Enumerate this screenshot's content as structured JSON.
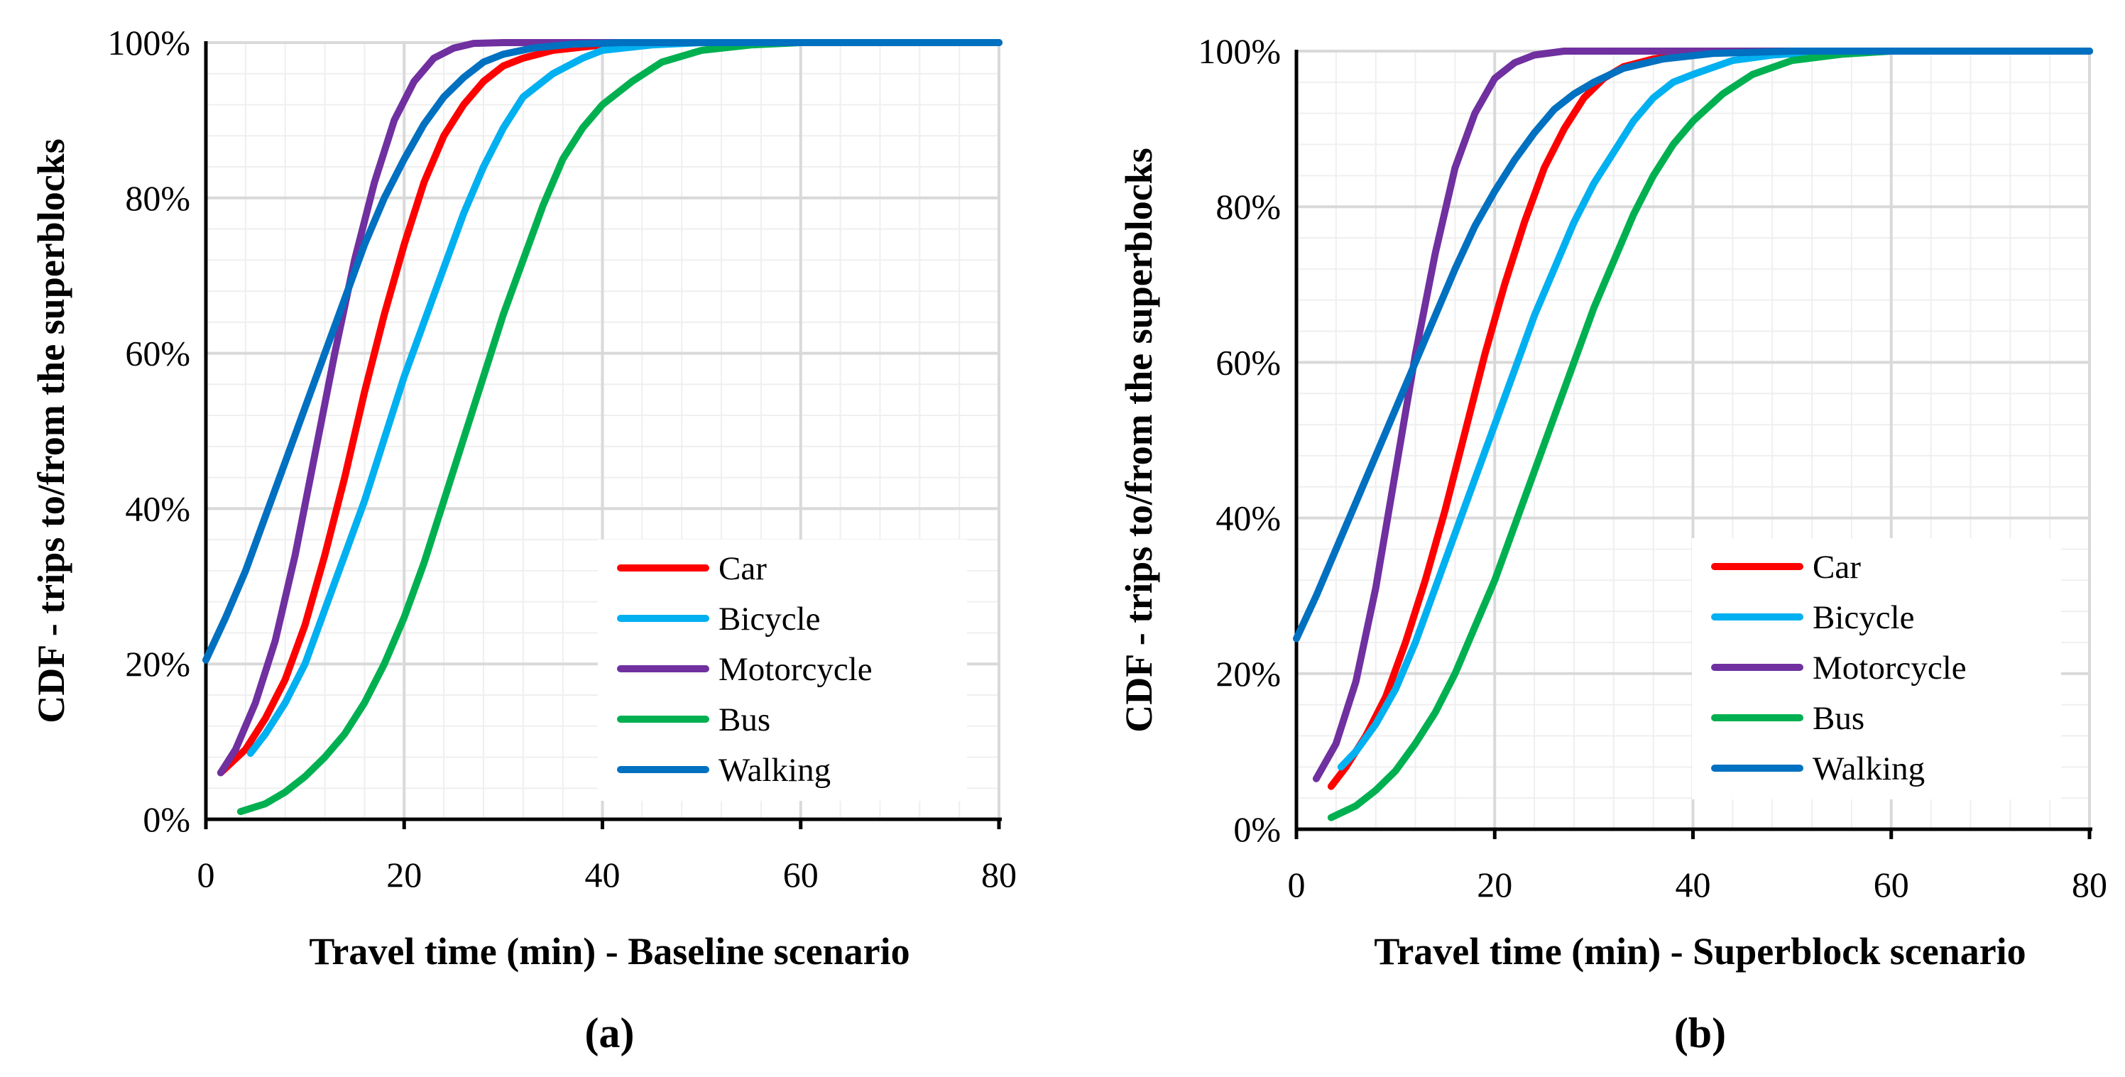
{
  "chart_data": [
    {
      "type": "line",
      "panel_label": "(a)",
      "xlabel": "Travel time (min) - Baseline scenario",
      "ylabel": "CDF - trips to/from the superblocks",
      "xlim": [
        0,
        80
      ],
      "ylim": [
        0,
        100
      ],
      "x_ticks": [
        0,
        20,
        40,
        60,
        80
      ],
      "x_tick_labels": [
        "0",
        "20",
        "40",
        "60",
        "80"
      ],
      "y_ticks": [
        0,
        20,
        40,
        60,
        80,
        100
      ],
      "y_tick_labels": [
        "0%",
        "20%",
        "40%",
        "60%",
        "80%",
        "100%"
      ],
      "grid": true,
      "legend_position": "bottom-right",
      "series": [
        {
          "name": "Car",
          "color": "#ff0000",
          "points": [
            [
              1.5,
              6
            ],
            [
              4,
              9
            ],
            [
              6,
              13
            ],
            [
              8,
              18
            ],
            [
              10,
              25
            ],
            [
              12,
              34
            ],
            [
              14,
              44
            ],
            [
              16,
              55
            ],
            [
              18,
              65
            ],
            [
              20,
              74
            ],
            [
              22,
              82
            ],
            [
              24,
              88
            ],
            [
              26,
              92
            ],
            [
              28,
              95
            ],
            [
              30,
              97
            ],
            [
              32,
              98
            ],
            [
              35,
              99
            ],
            [
              40,
              99.7
            ],
            [
              45,
              100
            ],
            [
              55,
              100
            ],
            [
              60,
              100
            ],
            [
              80,
              100
            ]
          ]
        },
        {
          "name": "Bicycle",
          "color": "#00b0f0",
          "points": [
            [
              4.5,
              8.5
            ],
            [
              6,
              11
            ],
            [
              8,
              15
            ],
            [
              10,
              20
            ],
            [
              12,
              27
            ],
            [
              14,
              34
            ],
            [
              16,
              41
            ],
            [
              18,
              49
            ],
            [
              20,
              57
            ],
            [
              22,
              64
            ],
            [
              24,
              71
            ],
            [
              26,
              78
            ],
            [
              28,
              84
            ],
            [
              30,
              89
            ],
            [
              32,
              93
            ],
            [
              35,
              96
            ],
            [
              38,
              98
            ],
            [
              40,
              99
            ],
            [
              45,
              99.7
            ],
            [
              50,
              100
            ],
            [
              60,
              100
            ],
            [
              80,
              100
            ]
          ]
        },
        {
          "name": "Motorcycle",
          "color": "#7030a0",
          "points": [
            [
              1.5,
              6
            ],
            [
              3,
              9
            ],
            [
              5,
              15
            ],
            [
              7,
              23
            ],
            [
              9,
              34
            ],
            [
              11,
              47
            ],
            [
              13,
              60
            ],
            [
              15,
              72
            ],
            [
              17,
              82
            ],
            [
              19,
              90
            ],
            [
              21,
              95
            ],
            [
              23,
              98
            ],
            [
              25,
              99.3
            ],
            [
              27,
              99.9
            ],
            [
              30,
              100
            ],
            [
              40,
              100
            ],
            [
              60,
              100
            ],
            [
              80,
              100
            ]
          ]
        },
        {
          "name": "Bus",
          "color": "#00b050",
          "points": [
            [
              3.5,
              1
            ],
            [
              6,
              2
            ],
            [
              8,
              3.5
            ],
            [
              10,
              5.5
            ],
            [
              12,
              8
            ],
            [
              14,
              11
            ],
            [
              16,
              15
            ],
            [
              18,
              20
            ],
            [
              20,
              26
            ],
            [
              22,
              33
            ],
            [
              24,
              41
            ],
            [
              26,
              49
            ],
            [
              28,
              57
            ],
            [
              30,
              65
            ],
            [
              32,
              72
            ],
            [
              34,
              79
            ],
            [
              36,
              85
            ],
            [
              38,
              89
            ],
            [
              40,
              92
            ],
            [
              43,
              95
            ],
            [
              46,
              97.5
            ],
            [
              50,
              99
            ],
            [
              55,
              99.7
            ],
            [
              60,
              100
            ],
            [
              80,
              100
            ]
          ]
        },
        {
          "name": "Walking",
          "color": "#0070c0",
          "points": [
            [
              0,
              20.5
            ],
            [
              2,
              26
            ],
            [
              4,
              32
            ],
            [
              6,
              39
            ],
            [
              8,
              46
            ],
            [
              10,
              53
            ],
            [
              12,
              60
            ],
            [
              14,
              67
            ],
            [
              16,
              74
            ],
            [
              18,
              80
            ],
            [
              20,
              85
            ],
            [
              22,
              89.5
            ],
            [
              24,
              93
            ],
            [
              26,
              95.5
            ],
            [
              28,
              97.5
            ],
            [
              30,
              98.5
            ],
            [
              33,
              99.3
            ],
            [
              37,
              99.8
            ],
            [
              42,
              100
            ],
            [
              60,
              100
            ],
            [
              80,
              100
            ]
          ]
        }
      ]
    },
    {
      "type": "line",
      "panel_label": "(b)",
      "xlabel": "Travel time (min) - Superblock scenario",
      "ylabel": "CDF - trips to/from the superblocks",
      "xlim": [
        0,
        80
      ],
      "ylim": [
        0,
        100
      ],
      "x_ticks": [
        0,
        20,
        40,
        60,
        80
      ],
      "x_tick_labels": [
        "0",
        "20",
        "40",
        "60",
        "80"
      ],
      "y_ticks": [
        0,
        20,
        40,
        60,
        80,
        100
      ],
      "y_tick_labels": [
        "0%",
        "20%",
        "40%",
        "60%",
        "80%",
        "100%"
      ],
      "grid": true,
      "legend_position": "bottom-right",
      "series": [
        {
          "name": "Car",
          "color": "#ff0000",
          "points": [
            [
              3.5,
              5.5
            ],
            [
              5,
              8
            ],
            [
              7,
              12
            ],
            [
              9,
              17
            ],
            [
              11,
              24
            ],
            [
              13,
              32
            ],
            [
              15,
              41
            ],
            [
              17,
              51
            ],
            [
              19,
              61
            ],
            [
              21,
              70
            ],
            [
              23,
              78
            ],
            [
              25,
              85
            ],
            [
              27,
              90
            ],
            [
              29,
              94
            ],
            [
              31,
              96.5
            ],
            [
              33,
              98
            ],
            [
              36,
              99
            ],
            [
              40,
              99.6
            ],
            [
              45,
              100
            ],
            [
              60,
              100
            ],
            [
              80,
              100
            ]
          ]
        },
        {
          "name": "Bicycle",
          "color": "#00b0f0",
          "points": [
            [
              4.5,
              8
            ],
            [
              6,
              10
            ],
            [
              8,
              13.5
            ],
            [
              10,
              18
            ],
            [
              12,
              24
            ],
            [
              14,
              31
            ],
            [
              16,
              38
            ],
            [
              18,
              45
            ],
            [
              20,
              52
            ],
            [
              22,
              59
            ],
            [
              24,
              66
            ],
            [
              26,
              72
            ],
            [
              28,
              78
            ],
            [
              30,
              83
            ],
            [
              32,
              87
            ],
            [
              34,
              91
            ],
            [
              36,
              94
            ],
            [
              38,
              96
            ],
            [
              40,
              97
            ],
            [
              44,
              98.8
            ],
            [
              48,
              99.5
            ],
            [
              53,
              99.9
            ],
            [
              60,
              100
            ],
            [
              80,
              100
            ]
          ]
        },
        {
          "name": "Motorcycle",
          "color": "#7030a0",
          "points": [
            [
              2,
              6.5
            ],
            [
              4,
              11
            ],
            [
              6,
              19
            ],
            [
              8,
              31
            ],
            [
              10,
              46
            ],
            [
              12,
              61
            ],
            [
              14,
              74
            ],
            [
              16,
              85
            ],
            [
              18,
              92
            ],
            [
              20,
              96.5
            ],
            [
              22,
              98.5
            ],
            [
              24,
              99.5
            ],
            [
              27,
              100
            ],
            [
              40,
              100
            ],
            [
              60,
              100
            ],
            [
              80,
              100
            ]
          ]
        },
        {
          "name": "Bus",
          "color": "#00b050",
          "points": [
            [
              3.5,
              1.5
            ],
            [
              6,
              3
            ],
            [
              8,
              5
            ],
            [
              10,
              7.5
            ],
            [
              12,
              11
            ],
            [
              14,
              15
            ],
            [
              16,
              20
            ],
            [
              18,
              26
            ],
            [
              20,
              32
            ],
            [
              22,
              39
            ],
            [
              24,
              46
            ],
            [
              26,
              53
            ],
            [
              28,
              60
            ],
            [
              30,
              67
            ],
            [
              32,
              73
            ],
            [
              34,
              79
            ],
            [
              36,
              84
            ],
            [
              38,
              88
            ],
            [
              40,
              91
            ],
            [
              43,
              94.5
            ],
            [
              46,
              97
            ],
            [
              50,
              98.8
            ],
            [
              55,
              99.6
            ],
            [
              60,
              100
            ],
            [
              80,
              100
            ]
          ]
        },
        {
          "name": "Walking",
          "color": "#0070c0",
          "points": [
            [
              0,
              24.5
            ],
            [
              2,
              30
            ],
            [
              4,
              36
            ],
            [
              6,
              42
            ],
            [
              8,
              48
            ],
            [
              10,
              54
            ],
            [
              12,
              60
            ],
            [
              14,
              66
            ],
            [
              16,
              72
            ],
            [
              18,
              77.5
            ],
            [
              20,
              82
            ],
            [
              22,
              86
            ],
            [
              24,
              89.5
            ],
            [
              26,
              92.5
            ],
            [
              28,
              94.5
            ],
            [
              30,
              96
            ],
            [
              33,
              97.8
            ],
            [
              37,
              99
            ],
            [
              42,
              99.7
            ],
            [
              50,
              100
            ],
            [
              60,
              100
            ],
            [
              80,
              100
            ]
          ]
        }
      ]
    }
  ]
}
